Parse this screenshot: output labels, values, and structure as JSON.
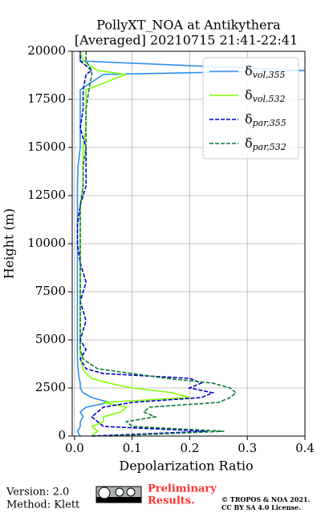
{
  "chart_data": {
    "type": "profile",
    "title": [
      "PollyXT_NOA at Antikythera",
      "[Averaged] 20210715 21:41-22:41"
    ],
    "x_label": "Depolarization Ratio",
    "y_label": "Height (m)",
    "xlim": [
      -0.004,
      0.4
    ],
    "xticks": [
      {
        "value": 0,
        "label": "0.0"
      },
      0.1,
      0.2,
      0.3,
      0.4
    ],
    "ylim": [
      0,
      20000
    ],
    "yticks": [
      0,
      2500,
      5000,
      7500,
      10000,
      12500,
      15000,
      17500,
      20000
    ],
    "grid": true,
    "legend": "upper right",
    "heights": [
      0,
      250,
      500,
      750,
      1000,
      1250,
      1500,
      1750,
      2000,
      2250,
      2500,
      2750,
      3000,
      3250,
      3500,
      4000,
      4500,
      5000,
      6000,
      7000,
      8000,
      9000,
      10000,
      11000,
      12000,
      13000,
      14000,
      15000,
      16000,
      17000,
      18000,
      18800,
      19000,
      19500,
      20000
    ],
    "series": [
      {
        "name": "δ",
        "subscript": "vol,355",
        "color": "#2e90f0",
        "dash": false,
        "values": [
          0.01,
          0.005,
          0.01,
          0.01,
          0.015,
          0.01,
          0.02,
          0.06,
          0.03,
          0.015,
          0.01,
          0.01,
          0.008,
          0.007,
          0.006,
          0.005,
          0.005,
          0.005,
          0.005,
          0.005,
          0.005,
          0.005,
          0.005,
          0.005,
          0.005,
          0.005,
          0.006,
          0.01,
          0.01,
          0.01,
          0.01,
          0.05,
          0.4,
          0.01,
          0.01
        ]
      },
      {
        "name": "δ",
        "subscript": "vol,532",
        "color": "#7fff00",
        "dash": false,
        "values": [
          0.03,
          0.04,
          0.03,
          0.05,
          0.05,
          0.08,
          0.09,
          0.05,
          0.2,
          0.17,
          0.1,
          0.06,
          0.03,
          0.02,
          0.015,
          0.01,
          0.01,
          0.01,
          0.01,
          0.01,
          0.01,
          0.01,
          0.01,
          0.01,
          0.01,
          0.015,
          0.015,
          0.015,
          0.02,
          0.02,
          0.02,
          0.09,
          0.04,
          0.015,
          0.01
        ]
      },
      {
        "name": "δ",
        "subscript": "par,355",
        "color": "#0000c8",
        "dash": true,
        "values": [
          0.03,
          0.23,
          0.05,
          0.04,
          0.03,
          0.04,
          0.05,
          0.1,
          0.22,
          0.24,
          0.2,
          0.22,
          0.2,
          0.05,
          0.02,
          0.01,
          0.02,
          0.01,
          0.02,
          0.01,
          0.02,
          0.01,
          0.005,
          0.005,
          0.01,
          0.02,
          0.02,
          0.02,
          0.01,
          0.015,
          0.015,
          0.02,
          0.03,
          0.01,
          0.01
        ]
      },
      {
        "name": "δ",
        "subscript": "par,532",
        "color": "#0b7a3b",
        "dash": true,
        "values": [
          0.06,
          0.26,
          0.1,
          0.09,
          0.14,
          0.12,
          0.13,
          0.25,
          0.27,
          0.28,
          0.27,
          0.24,
          0.16,
          0.1,
          0.04,
          0.015,
          0.01,
          0.01,
          0.01,
          0.01,
          0.01,
          0.01,
          0.01,
          0.01,
          0.01,
          0.015,
          0.015,
          0.02,
          0.02,
          0.02,
          0.025,
          0.03,
          0.03,
          0.02,
          0.02
        ]
      }
    ]
  },
  "footer": {
    "version": "Version: 2.0",
    "method": "Method: Klett",
    "preliminary": [
      "Preliminary",
      "Results."
    ],
    "license": [
      "© TROPOS & NOA 2021.",
      "CC BY SA 4.0 License."
    ]
  }
}
